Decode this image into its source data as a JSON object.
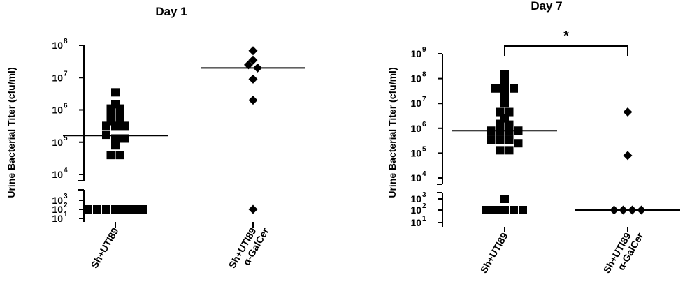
{
  "chart_data": [
    {
      "type": "scatter",
      "title": "Day 1",
      "ylabel": "Urine Bacterial Titer (cfu/ml)",
      "yscale": "log10 with axis break between 10^3 and 10^4",
      "yticks_exponents": [
        1,
        2,
        3,
        4,
        5,
        6,
        7,
        8
      ],
      "tick_base": "10",
      "categories": [
        {
          "lines": [
            "Sh+UTI89"
          ]
        },
        {
          "lines": [
            "Sh+UTI89",
            "α-GalCer"
          ]
        }
      ],
      "series": [
        {
          "marker": "square",
          "values": [
            3500000,
            1500000,
            1100000,
            1100000,
            800000,
            800000,
            450000,
            450000,
            320000,
            320000,
            320000,
            170000,
            130000,
            130000,
            80000,
            40000,
            40000,
            100,
            100,
            100,
            100,
            100,
            100,
            100
          ],
          "median": 160000
        },
        {
          "marker": "diamond",
          "values": [
            68000000,
            35000000,
            25000000,
            20000000,
            9000000,
            2000000,
            100
          ],
          "median": 20000000
        }
      ],
      "annotations": []
    },
    {
      "type": "scatter",
      "title": "Day 7",
      "ylabel": "Urine Bacterial Titer (cfu/ml)",
      "yscale": "log10 with axis break between 10^3 and 10^4",
      "yticks_exponents": [
        1,
        2,
        3,
        4,
        5,
        6,
        7,
        8,
        9
      ],
      "tick_base": "10",
      "categories": [
        {
          "lines": [
            "Sh+UTI89"
          ]
        },
        {
          "lines": [
            "Sh+UTI89",
            "α-GalCer"
          ]
        }
      ],
      "series": [
        {
          "marker": "square",
          "values": [
            150000000,
            80000000,
            40000000,
            40000000,
            40000000,
            20000000,
            10000000,
            4500000,
            4500000,
            2500000,
            1500000,
            1400000,
            800000,
            800000,
            800000,
            800000,
            350000,
            350000,
            350000,
            250000,
            130000,
            130000,
            2500,
            100,
            100,
            100,
            100,
            100
          ],
          "median": 800000
        },
        {
          "marker": "diamond",
          "values": [
            4500000,
            80000,
            100,
            100,
            100,
            100
          ],
          "median": 100
        }
      ],
      "annotations": [
        {
          "text": "*"
        }
      ]
    }
  ]
}
